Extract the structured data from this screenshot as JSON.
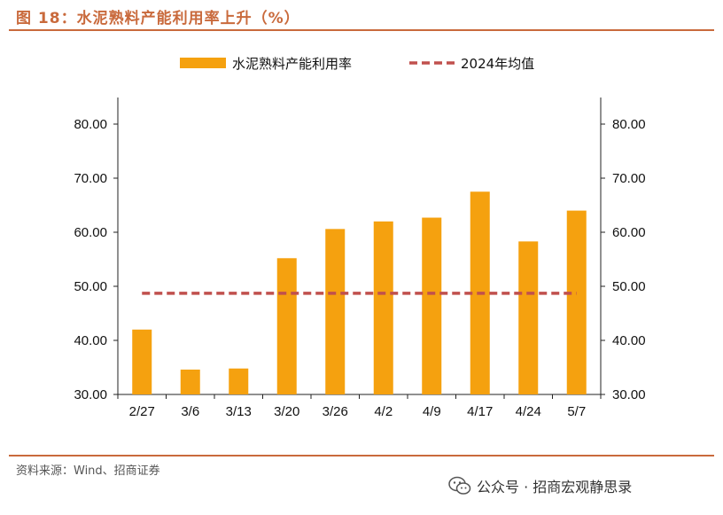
{
  "figure": {
    "title": "图 18：水泥熟料产能利用率上升（%）",
    "source": "资料来源：Wind、招商证券",
    "watermark": "公众号 · 招商宏观静思录",
    "watermark_icon": "wechat-icon"
  },
  "colors": {
    "accent": "#c96a3c",
    "bar": "#f5a10f",
    "average_line": "#c0504d"
  },
  "chart_data": {
    "type": "bar",
    "categories": [
      "2/27",
      "3/6",
      "3/13",
      "3/20",
      "3/26",
      "4/2",
      "4/9",
      "4/17",
      "4/24",
      "5/7"
    ],
    "series": [
      {
        "name": "水泥熟料产能利用率",
        "kind": "bar",
        "values": [
          42.0,
          34.6,
          34.8,
          55.2,
          60.6,
          62.0,
          62.7,
          67.5,
          58.3,
          64.0
        ]
      },
      {
        "name": "2024年均值",
        "kind": "dashed-line",
        "values": [
          48.7,
          48.7,
          48.7,
          48.7,
          48.7,
          48.7,
          48.7,
          48.7,
          48.7,
          48.7
        ]
      }
    ],
    "ylim": [
      30,
      80
    ],
    "yticks": [
      "30.00",
      "40.00",
      "50.00",
      "60.00",
      "70.00",
      "80.00"
    ],
    "right_axis_mirrored": true,
    "grid": false,
    "legend_position": "top"
  }
}
